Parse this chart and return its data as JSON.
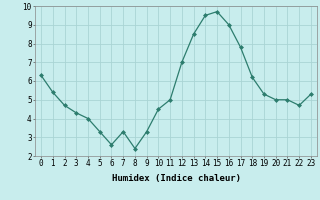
{
  "x": [
    0,
    1,
    2,
    3,
    4,
    5,
    6,
    7,
    8,
    9,
    10,
    11,
    12,
    13,
    14,
    15,
    16,
    17,
    18,
    19,
    20,
    21,
    22,
    23
  ],
  "y": [
    6.3,
    5.4,
    4.7,
    4.3,
    4.0,
    3.3,
    2.6,
    3.3,
    2.4,
    3.3,
    4.5,
    5.0,
    7.0,
    8.5,
    9.5,
    9.7,
    9.0,
    7.8,
    6.2,
    5.3,
    5.0,
    5.0,
    4.7,
    5.3
  ],
  "line_color": "#2d7d6e",
  "marker": "D",
  "marker_size": 2.0,
  "bg_color": "#c8eded",
  "grid_color": "#aad4d4",
  "xlabel": "Humidex (Indice chaleur)",
  "xlim": [
    -0.5,
    23.5
  ],
  "ylim": [
    2,
    10
  ],
  "xticks": [
    0,
    1,
    2,
    3,
    4,
    5,
    6,
    7,
    8,
    9,
    10,
    11,
    12,
    13,
    14,
    15,
    16,
    17,
    18,
    19,
    20,
    21,
    22,
    23
  ],
  "yticks": [
    2,
    3,
    4,
    5,
    6,
    7,
    8,
    9,
    10
  ],
  "xlabel_fontsize": 6.5,
  "tick_fontsize": 5.5,
  "linewidth": 0.9
}
